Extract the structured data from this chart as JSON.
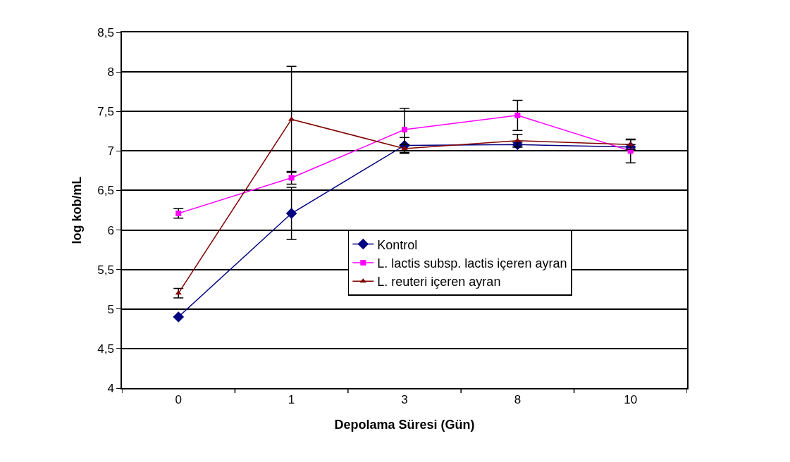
{
  "chart_data": {
    "type": "line",
    "xlabel": "Depolama Süresi (Gün)",
    "ylabel": "log kob/mL",
    "categories": [
      "0",
      "1",
      "3",
      "8",
      "10"
    ],
    "series": [
      {
        "name": "Kontrol",
        "color": "#000080",
        "marker": "diamond",
        "values": [
          4.9,
          6.21,
          7.07,
          7.08,
          7.05
        ],
        "errors": [
          null,
          0.33,
          0.1,
          0.03,
          0.03
        ]
      },
      {
        "name": "L. lactis subsp. lactis içeren ayran",
        "color": "#ff00ff",
        "marker": "square",
        "values": [
          6.21,
          6.66,
          7.27,
          7.45,
          7.0
        ],
        "errors": [
          0.06,
          0.08,
          0.27,
          0.19,
          0.15
        ]
      },
      {
        "name": "L. reuteri içeren ayran",
        "color": "#800000",
        "marker": "triangle",
        "values": [
          5.2,
          7.4,
          7.03,
          7.13,
          7.08
        ],
        "errors": [
          0.06,
          0.67,
          0.05,
          0.08,
          0.06
        ]
      }
    ],
    "ylim": [
      4,
      8.5
    ],
    "yticks": [
      {
        "value": 4,
        "label": "4"
      },
      {
        "value": 4.5,
        "label": "4,5"
      },
      {
        "value": 5,
        "label": "5"
      },
      {
        "value": 5.5,
        "label": "5,5"
      },
      {
        "value": 6,
        "label": "6"
      },
      {
        "value": 6.5,
        "label": "6,5"
      },
      {
        "value": 7,
        "label": "7"
      },
      {
        "value": 7.5,
        "label": "7,5"
      },
      {
        "value": 8,
        "label": "8"
      },
      {
        "value": 8.5,
        "label": "8,5"
      }
    ],
    "grid": "y",
    "legend": "right"
  }
}
